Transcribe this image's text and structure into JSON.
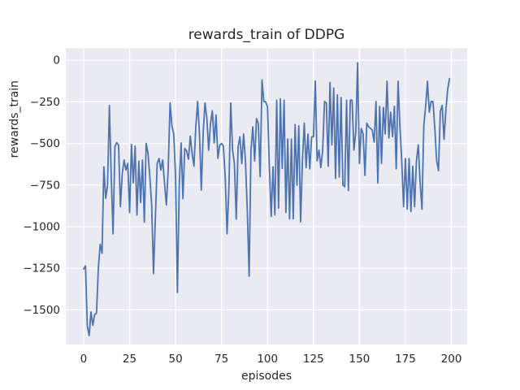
{
  "figure": {
    "background": "#ffffff"
  },
  "chart_data": {
    "type": "line",
    "title": "rewards_train of DDPG",
    "xlabel": "episodes",
    "ylabel": "rewards_train",
    "grid": true,
    "legend": "none",
    "axes_background": "#eaeaf2",
    "grid_color": "#ffffff",
    "line_color": "#4c72b0",
    "text_color": "#262626",
    "xlim": [
      -9.7,
      208.6
    ],
    "ylim": [
      -1708,
      74
    ],
    "xticks": [
      0,
      25,
      50,
      75,
      100,
      125,
      150,
      175,
      200
    ],
    "xtick_labels": [
      "0",
      "25",
      "50",
      "75",
      "100",
      "125",
      "150",
      "175",
      "200"
    ],
    "yticks": [
      0,
      -250,
      -500,
      -750,
      -1000,
      -1250,
      -1500
    ],
    "ytick_labels": [
      "0",
      "−250",
      "−500",
      "−750",
      "−1000",
      "−1250",
      "−1500"
    ],
    "x_start": 0,
    "x_step": 1,
    "y": [
      -1255,
      -1235,
      -1597,
      -1655,
      -1512,
      -1593,
      -1528,
      -1520,
      -1249,
      -1105,
      -1160,
      -640,
      -830,
      -750,
      -272,
      -700,
      -1043,
      -520,
      -495,
      -510,
      -880,
      -683,
      -600,
      -660,
      -620,
      -915,
      -505,
      -737,
      -516,
      -930,
      -606,
      -855,
      -600,
      -973,
      -500,
      -560,
      -700,
      -870,
      -1282,
      -950,
      -620,
      -590,
      -660,
      -600,
      -740,
      -870,
      -650,
      -256,
      -394,
      -443,
      -700,
      -1396,
      -750,
      -497,
      -832,
      -530,
      -545,
      -595,
      -456,
      -560,
      -636,
      -400,
      -248,
      -443,
      -780,
      -440,
      -256,
      -350,
      -540,
      -380,
      -304,
      -497,
      -329,
      -590,
      -510,
      -500,
      -515,
      -700,
      -1043,
      -768,
      -256,
      -540,
      -621,
      -955,
      -520,
      -460,
      -621,
      -443,
      -605,
      -900,
      -1298,
      -540,
      -400,
      -605,
      -351,
      -380,
      -700,
      -118,
      -248,
      -250,
      -280,
      -640,
      -938,
      -640,
      -930,
      -240,
      -889,
      -232,
      -650,
      -240,
      -914,
      -473,
      -953,
      -473,
      -953,
      -386,
      -751,
      -394,
      -971,
      -600,
      -378,
      -645,
      -443,
      -652,
      -460,
      -460,
      -125,
      -605,
      -540,
      -645,
      -540,
      -248,
      -256,
      -637,
      -134,
      -508,
      -167,
      -710,
      -208,
      -702,
      -224,
      -751,
      -760,
      -240,
      -783,
      -240,
      -240,
      -540,
      -430,
      -15,
      -620,
      -410,
      -443,
      -692,
      -378,
      -400,
      -410,
      -420,
      -492,
      -248,
      -737,
      -277,
      -620,
      -284,
      -443,
      -126,
      -467,
      -312,
      -459,
      -277,
      -652,
      -126,
      -394,
      -605,
      -880,
      -591,
      -895,
      -591,
      -909,
      -637,
      -880,
      -605,
      -508,
      -740,
      -895,
      -394,
      -277,
      -126,
      -312,
      -248,
      -248,
      -410,
      -605,
      -663,
      -307,
      -272,
      -475,
      -300,
      -175,
      -110
    ]
  }
}
